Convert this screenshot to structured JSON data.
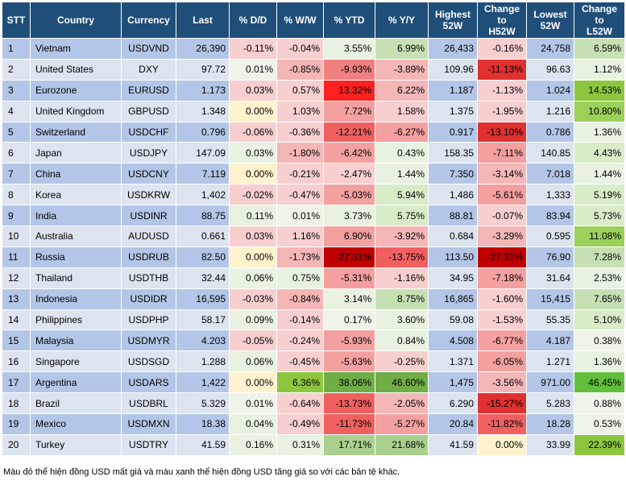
{
  "headers": [
    "STT",
    "Country",
    "Currency",
    "Last",
    "% D/D",
    "% W/W",
    "% YTD",
    "% Y/Y",
    "Highest\n52W",
    "Change\nto\nH52W",
    "Lowest\n52W",
    "Change\nto\nL52W"
  ],
  "rows": [
    {
      "cells": [
        "1",
        "Vietnam",
        "USDVND",
        "26,390",
        "-0.11%",
        "-0.04%",
        "3.55%",
        "6.99%",
        "26,433",
        "-0.16%",
        "24,758",
        "6.59%"
      ],
      "colors": {
        "4": "#f7cfcf",
        "5": "#f7cfcf",
        "6": "#e8f2e0",
        "7": "#c6e0b4",
        "9": "#f7cfcf",
        "11": "#c6e0b4"
      }
    },
    {
      "cells": [
        "2",
        "United States",
        "DXY",
        "97.72",
        "0.01%",
        "-0.85%",
        "-9.93%",
        "-3.89%",
        "109.96",
        "-11.13%",
        "96.63",
        "1.12%"
      ],
      "colors": {
        "4": "#eef4e8",
        "5": "#f4b6b6",
        "6": "#f08080",
        "7": "#f4b6b6",
        "9": "#e03030",
        "11": "#e8f2e0"
      }
    },
    {
      "cells": [
        "3",
        "Eurozone",
        "EURUSD",
        "1.173",
        "0.03%",
        "0.57%",
        "13.32%",
        "6.22%",
        "1.187",
        "-1.13%",
        "1.024",
        "14.53%"
      ],
      "colors": {
        "4": "#f7cfcf",
        "5": "#f7cfcf",
        "6": "#ff2020",
        "7": "#f4b6b6",
        "9": "#f7cfcf",
        "11": "#8cc63f"
      }
    },
    {
      "cells": [
        "4",
        "United Kingdom",
        "GBPUSD",
        "1.348",
        "0.00%",
        "1.03%",
        "7.72%",
        "1.58%",
        "1.375",
        "-1.95%",
        "1.216",
        "10.80%"
      ],
      "colors": {
        "4": "#fff2cc",
        "5": "#f7cfcf",
        "6": "#f4a0a0",
        "7": "#f7cfcf",
        "9": "#f7cfcf",
        "11": "#9bd05a"
      }
    },
    {
      "cells": [
        "5",
        "Switzerland",
        "USDCHF",
        "0.796",
        "-0.06%",
        "-0.36%",
        "-12.21%",
        "-6.27%",
        "0.917",
        "-13.10%",
        "0.786",
        "1.36%"
      ],
      "colors": {
        "4": "#f7cfcf",
        "5": "#f7cfcf",
        "6": "#f06060",
        "7": "#f4a0a0",
        "9": "#e03030",
        "11": "#e8f2e0"
      }
    },
    {
      "cells": [
        "6",
        "Japan",
        "USDJPY",
        "147.09",
        "0.03%",
        "-1.80%",
        "-6.42%",
        "0.43%",
        "158.35",
        "-7.11%",
        "140.85",
        "4.43%"
      ],
      "colors": {
        "4": "#e8f2e0",
        "5": "#f4b6b6",
        "6": "#f4a0a0",
        "7": "#e8f2e0",
        "9": "#f4a0a0",
        "11": "#d8ecc8"
      }
    },
    {
      "cells": [
        "7",
        "China",
        "USDCNY",
        "7.119",
        "0.00%",
        "-0.21%",
        "-2.47%",
        "1.44%",
        "7.350",
        "-3.14%",
        "7.018",
        "1.44%"
      ],
      "colors": {
        "4": "#fff2cc",
        "5": "#f7cfcf",
        "6": "#f7cfcf",
        "7": "#e8f2e0",
        "9": "#f4b6b6",
        "11": "#e8f2e0"
      }
    },
    {
      "cells": [
        "8",
        "Korea",
        "USDKRW",
        "1,402",
        "-0.02%",
        "-0.47%",
        "-5.03%",
        "5.94%",
        "1,486",
        "-5.61%",
        "1,333",
        "5.19%"
      ],
      "colors": {
        "4": "#f7cfcf",
        "5": "#f7cfcf",
        "6": "#f4a0a0",
        "7": "#d8ecc8",
        "9": "#f4a0a0",
        "11": "#d8ecc8"
      }
    },
    {
      "cells": [
        "9",
        "India",
        "USDINR",
        "88.75",
        "0.11%",
        "0.01%",
        "3.73%",
        "5.75%",
        "88.81",
        "-0.07%",
        "83.94",
        "5.73%"
      ],
      "colors": {
        "4": "#e8f2e0",
        "5": "#eef4e8",
        "6": "#e8f2e0",
        "7": "#d8ecc8",
        "9": "#f7cfcf",
        "11": "#d8ecc8"
      }
    },
    {
      "cells": [
        "10",
        "Australia",
        "AUDUSD",
        "0.661",
        "0.03%",
        "1.16%",
        "6.90%",
        "-3.92%",
        "0.684",
        "-3.29%",
        "0.595",
        "11.08%"
      ],
      "colors": {
        "4": "#f7cfcf",
        "5": "#f7cfcf",
        "6": "#f4a0a0",
        "7": "#f4b6b6",
        "9": "#f4b6b6",
        "11": "#9bd05a"
      }
    },
    {
      "cells": [
        "11",
        "Russia",
        "USDRUB",
        "82.50",
        "0.00%",
        "-1.73%",
        "-27.31%",
        "-13.75%",
        "113.50",
        "-27.31%",
        "76.90",
        "7.28%"
      ],
      "colors": {
        "4": "#fff2cc",
        "5": "#f4b6b6",
        "6": "#c00000",
        "7": "#f06060",
        "9": "#c00000",
        "11": "#c6e0b4"
      }
    },
    {
      "cells": [
        "12",
        "Thailand",
        "USDTHB",
        "32.44",
        "0.06%",
        "0.75%",
        "-5.31%",
        "-1.16%",
        "34.95",
        "-7.18%",
        "31.64",
        "2.53%"
      ],
      "colors": {
        "4": "#e8f2e0",
        "5": "#e8f2e0",
        "6": "#f4a0a0",
        "7": "#f7cfcf",
        "9": "#f4a0a0",
        "11": "#e8f2e0"
      }
    },
    {
      "cells": [
        "13",
        "Indonesia",
        "USDIDR",
        "16,595",
        "-0.03%",
        "-0.84%",
        "3.14%",
        "8.75%",
        "16,865",
        "-1.60%",
        "15,415",
        "7.65%"
      ],
      "colors": {
        "4": "#f7cfcf",
        "5": "#f4b6b6",
        "6": "#e8f2e0",
        "7": "#c6e0b4",
        "9": "#f7cfcf",
        "11": "#c6e0b4"
      }
    },
    {
      "cells": [
        "14",
        "Philippines",
        "USDPHP",
        "58.17",
        "0.09%",
        "-0.14%",
        "0.17%",
        "3.60%",
        "59.08",
        "-1.53%",
        "55.35",
        "5.10%"
      ],
      "colors": {
        "4": "#e8f2e0",
        "5": "#f7cfcf",
        "6": "#eef4e8",
        "7": "#e8f2e0",
        "9": "#f7cfcf",
        "11": "#d8ecc8"
      }
    },
    {
      "cells": [
        "15",
        "Malaysia",
        "USDMYR",
        "4.203",
        "-0.05%",
        "-0.24%",
        "-5.93%",
        "0.84%",
        "4.508",
        "-6.77%",
        "4.187",
        "0.38%"
      ],
      "colors": {
        "4": "#f7cfcf",
        "5": "#f7cfcf",
        "6": "#f4a0a0",
        "7": "#e8f2e0",
        "9": "#f4a0a0",
        "11": "#eef4e8"
      }
    },
    {
      "cells": [
        "16",
        "Singapore",
        "USDSGD",
        "1.288",
        "0.06%",
        "-0.45%",
        "-5.63%",
        "-0.25%",
        "1.371",
        "-6.05%",
        "1.271",
        "1.36%"
      ],
      "colors": {
        "4": "#e8f2e0",
        "5": "#f7cfcf",
        "6": "#f4a0a0",
        "7": "#f7cfcf",
        "9": "#f4a0a0",
        "11": "#e8f2e0"
      }
    },
    {
      "cells": [
        "17",
        "Argentina",
        "USDARS",
        "1,422",
        "0.00%",
        "6.36%",
        "38.06%",
        "46.60%",
        "1,475",
        "-3.56%",
        "971.00",
        "46.45%"
      ],
      "colors": {
        "4": "#fff2cc",
        "5": "#8cc63f",
        "6": "#70ad47",
        "7": "#70ad47",
        "9": "#f4b6b6",
        "11": "#63be3c"
      }
    },
    {
      "cells": [
        "18",
        "Brazil",
        "USDBRL",
        "5.329",
        "0.01%",
        "-0.64%",
        "-13.73%",
        "-2.05%",
        "6.290",
        "-15.27%",
        "5.283",
        "0.88%"
      ],
      "colors": {
        "4": "#eef4e8",
        "5": "#f7cfcf",
        "6": "#f06060",
        "7": "#f4b6b6",
        "9": "#e03030",
        "11": "#eef4e8"
      }
    },
    {
      "cells": [
        "19",
        "Mexico",
        "USDMXN",
        "18.38",
        "0.04%",
        "-0.49%",
        "-11.73%",
        "-5.27%",
        "20.84",
        "-11.82%",
        "18.28",
        "0.53%"
      ],
      "colors": {
        "4": "#e8f2e0",
        "5": "#f7cfcf",
        "6": "#f06060",
        "7": "#f4a0a0",
        "9": "#f06060",
        "11": "#eef4e8"
      }
    },
    {
      "cells": [
        "20",
        "Turkey",
        "USDTRY",
        "41.59",
        "0.16%",
        "0.31%",
        "17.71%",
        "21.68%",
        "41.59",
        "0.00%",
        "33.99",
        "22.39%"
      ],
      "colors": {
        "4": "#e8f2e0",
        "5": "#e8f2e0",
        "6": "#a9d18e",
        "7": "#a9d18e",
        "9": "#fff2cc",
        "11": "#8cc63f"
      }
    }
  ],
  "note": "Màu đỏ thể hiện đồng USD mất giá và màu xanh thể hiện đồng USD tăng giá so với các bản tệ khác."
}
